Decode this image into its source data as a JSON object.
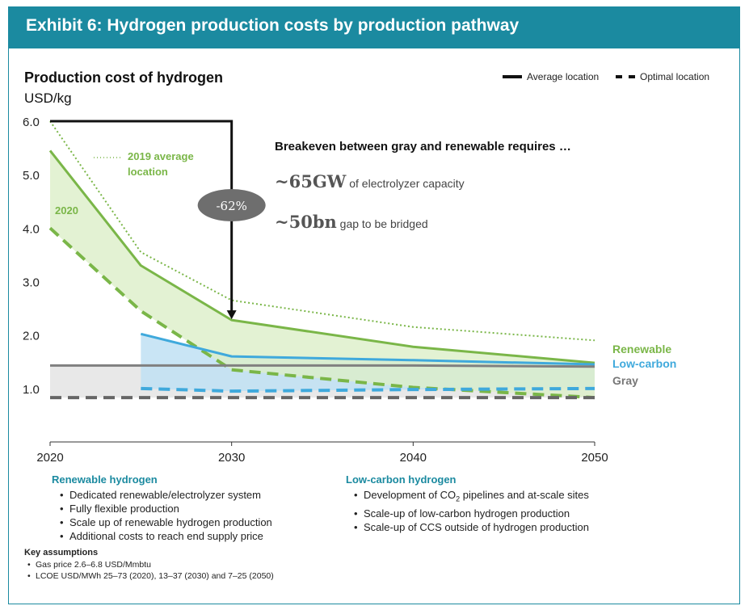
{
  "header": {
    "title": "Exhibit 6: Hydrogen production costs by production pathway"
  },
  "chart": {
    "title": "Production cost of hydrogen",
    "unit": "USD/kg"
  },
  "legend": [
    {
      "label": "Average location",
      "style": "solid"
    },
    {
      "label": "Optimal location",
      "style": "dashed"
    }
  ],
  "annotations": {
    "breakeven_title": "Breakeven between gray and renewable requires …",
    "capacity_value": "~65GW",
    "capacity_text": "of electrolyzer capacity",
    "gap_value": "~50bn",
    "gap_text": "gap to be bridged",
    "reduction_badge": "-62%",
    "avg_2019_label_line1": "2019 average",
    "avg_2019_label_line2": "location",
    "label_2020": "2020"
  },
  "series_labels": {
    "renewable": "Renewable",
    "low_carbon": "Low-carbon",
    "gray": "Gray"
  },
  "colors": {
    "header": "#1b8aa0",
    "renewable": "#7ab648",
    "renewable_fill": "#dcefc8",
    "low_carbon": "#3fa9dc",
    "low_carbon_fill": "#bfe1f3",
    "gray": "#808080",
    "gray_fill": "#e6e6e6",
    "dark": "#111111"
  },
  "chart_data": {
    "type": "line",
    "ylim": [
      0,
      6
    ],
    "yticks": [
      "1.0",
      "2.0",
      "3.0",
      "4.0",
      "5.0",
      "6.0"
    ],
    "xticks": [
      "2020",
      "2030",
      "2040",
      "2050"
    ],
    "xlim": [
      2020,
      2050
    ],
    "series": [
      {
        "name": "2019 average location",
        "style": "dotted",
        "color": "#7ab648",
        "x": [
          2020,
          2025,
          2030,
          2040,
          2050
        ],
        "y": [
          6.0,
          3.55,
          2.65,
          2.15,
          1.9
        ]
      },
      {
        "name": "Renewable",
        "style": "solid",
        "color": "#7ab648",
        "x": [
          2020,
          2025,
          2030,
          2040,
          2050
        ],
        "y": [
          5.45,
          3.3,
          2.28,
          1.78,
          1.48
        ]
      },
      {
        "name": "Renewable",
        "style": "dashed",
        "color": "#7ab648",
        "x": [
          2020,
          2025,
          2030,
          2040,
          2050
        ],
        "y": [
          4.0,
          2.45,
          1.35,
          1.02,
          0.83
        ]
      },
      {
        "name": "Low-carbon",
        "style": "solid",
        "color": "#3fa9dc",
        "x": [
          2025,
          2030,
          2040,
          2050
        ],
        "y": [
          2.02,
          1.6,
          1.53,
          1.45
        ]
      },
      {
        "name": "Low-carbon",
        "style": "dashed",
        "color": "#3fa9dc",
        "x": [
          2025,
          2030,
          2040,
          2050
        ],
        "y": [
          1.0,
          0.95,
          0.98,
          1.0
        ]
      },
      {
        "name": "Gray",
        "style": "solid",
        "color": "#808080",
        "x": [
          2020,
          2030,
          2040,
          2050
        ],
        "y": [
          1.43,
          1.43,
          1.43,
          1.41
        ]
      },
      {
        "name": "Gray",
        "style": "dashed",
        "color": "#666666",
        "x": [
          2020,
          2030,
          2040,
          2050
        ],
        "y": [
          0.83,
          0.83,
          0.83,
          0.83
        ]
      }
    ],
    "arrow": {
      "from": [
        2020,
        6.0
      ],
      "to": [
        2030,
        2.28
      ]
    }
  },
  "sections": {
    "renewable": {
      "title": "Renewable hydrogen",
      "items": [
        "Dedicated renewable/electrolyzer system",
        "Fully flexible production",
        "Scale up of renewable hydrogen production",
        "Additional costs to reach end supply price"
      ]
    },
    "low_carbon": {
      "title": "Low-carbon hydrogen",
      "item1_pre": "Development of CO",
      "item1_sub": "2",
      "item1_post": " pipelines and at-scale sites",
      "items_rest": [
        "Scale-up of low-carbon hydrogen production",
        "Scale-up of CCS outside of hydrogen production"
      ]
    }
  },
  "assumptions": {
    "title": "Key assumptions",
    "items": [
      "Gas price 2.6–6.8 USD/Mmbtu",
      "LCOE USD/MWh 25–73 (2020), 13–37 (2030) and 7–25 (2050)"
    ]
  }
}
